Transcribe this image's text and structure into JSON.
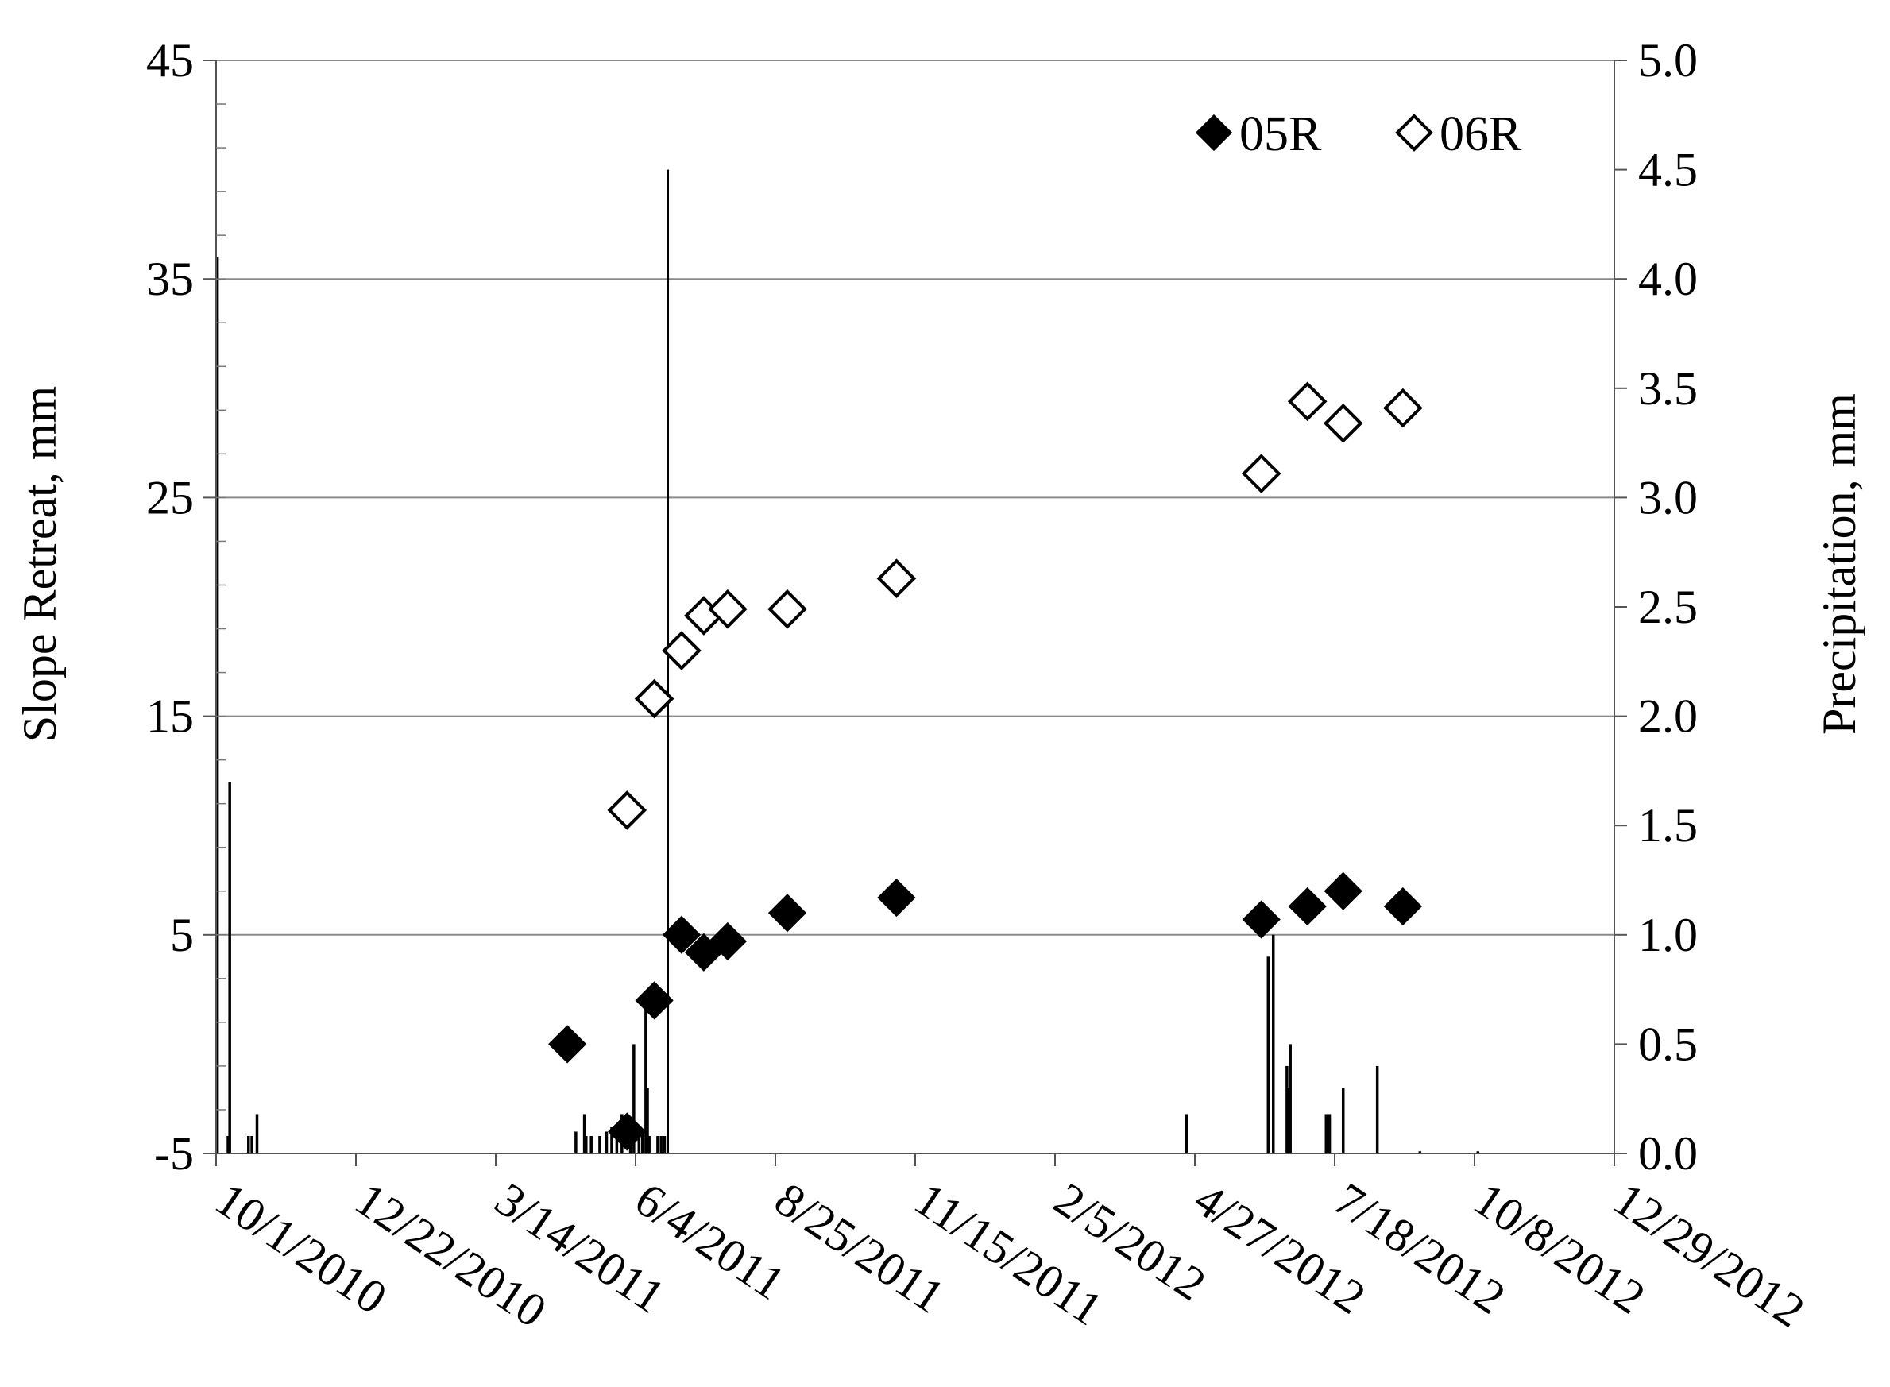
{
  "chart_data": {
    "type": "scatter",
    "title": "",
    "xlabel": "",
    "ylabel": "Slope Retreat, mm",
    "y2label": "Precipitation, mm",
    "ylim": [
      -5,
      45
    ],
    "y2lim": [
      0.0,
      5.0
    ],
    "yticks": [
      "-5",
      "5",
      "15",
      "25",
      "35",
      "45"
    ],
    "y2ticks": [
      "0.0",
      "0.5",
      "1.0",
      "1.5",
      "2.0",
      "2.5",
      "3.0",
      "3.5",
      "4.0",
      "4.5",
      "5.0"
    ],
    "xlim": [
      "2010-10-01",
      "2012-12-29"
    ],
    "xticks": [
      "10/1/2010",
      "12/22/2010",
      "3/14/2011",
      "6/4/2011",
      "8/25/2011",
      "11/15/2011",
      "2/5/2012",
      "4/27/2012",
      "7/18/2012",
      "10/8/2012",
      "12/29/2012"
    ],
    "grid": "horizontal at major y ticks",
    "legend": "top-right",
    "series": [
      {
        "name": "05R",
        "marker": "filled-diamond",
        "color": "#000000",
        "axis": "left",
        "points": [
          {
            "x": "2011-04-25",
            "y": 0.0
          },
          {
            "x": "2011-05-30",
            "y": -4.0
          },
          {
            "x": "2011-06-15",
            "y": 2.0
          },
          {
            "x": "2011-07-01",
            "y": 5.0
          },
          {
            "x": "2011-07-14",
            "y": 4.2
          },
          {
            "x": "2011-07-28",
            "y": 4.7
          },
          {
            "x": "2011-09-01",
            "y": 6.0
          },
          {
            "x": "2011-11-04",
            "y": 6.7
          },
          {
            "x": "2012-06-05",
            "y": 5.7
          },
          {
            "x": "2012-07-02",
            "y": 6.3
          },
          {
            "x": "2012-07-23",
            "y": 7.0
          },
          {
            "x": "2012-08-27",
            "y": 6.3
          }
        ]
      },
      {
        "name": "06R",
        "marker": "open-diamond",
        "color": "#000000",
        "axis": "left",
        "points": [
          {
            "x": "2011-05-30",
            "y": 10.7
          },
          {
            "x": "2011-06-15",
            "y": 15.8
          },
          {
            "x": "2011-07-01",
            "y": 18.0
          },
          {
            "x": "2011-07-14",
            "y": 19.6
          },
          {
            "x": "2011-07-28",
            "y": 19.9
          },
          {
            "x": "2011-09-01",
            "y": 19.9
          },
          {
            "x": "2011-11-04",
            "y": 21.3
          },
          {
            "x": "2012-06-05",
            "y": 26.1
          },
          {
            "x": "2012-07-02",
            "y": 29.4
          },
          {
            "x": "2012-07-23",
            "y": 28.4
          },
          {
            "x": "2012-08-27",
            "y": 29.1
          }
        ]
      },
      {
        "name": "Precipitation",
        "type": "bar",
        "color": "#000000",
        "axis": "right",
        "points": [
          {
            "x": "2010-10-02",
            "y": 4.1
          },
          {
            "x": "2010-10-08",
            "y": 0.08
          },
          {
            "x": "2010-10-09",
            "y": 1.7
          },
          {
            "x": "2010-10-20",
            "y": 0.08
          },
          {
            "x": "2010-10-22",
            "y": 0.08
          },
          {
            "x": "2010-10-25",
            "y": 0.18
          },
          {
            "x": "2011-04-30",
            "y": 0.1
          },
          {
            "x": "2011-05-05",
            "y": 0.18
          },
          {
            "x": "2011-05-06",
            "y": 0.08
          },
          {
            "x": "2011-05-09",
            "y": 0.08
          },
          {
            "x": "2011-05-14",
            "y": 0.08
          },
          {
            "x": "2011-05-18",
            "y": 0.1
          },
          {
            "x": "2011-05-21",
            "y": 0.12
          },
          {
            "x": "2011-05-24",
            "y": 0.08
          },
          {
            "x": "2011-05-27",
            "y": 0.18
          },
          {
            "x": "2011-06-01",
            "y": 0.12
          },
          {
            "x": "2011-06-03",
            "y": 0.5
          },
          {
            "x": "2011-06-06",
            "y": 0.08
          },
          {
            "x": "2011-06-08",
            "y": 0.1
          },
          {
            "x": "2011-06-10",
            "y": 0.7
          },
          {
            "x": "2011-06-11",
            "y": 0.3
          },
          {
            "x": "2011-06-12",
            "y": 0.08
          },
          {
            "x": "2011-06-17",
            "y": 0.08
          },
          {
            "x": "2011-06-19",
            "y": 0.08
          },
          {
            "x": "2011-06-21",
            "y": 0.08
          },
          {
            "x": "2011-06-23",
            "y": 4.5
          },
          {
            "x": "2012-04-22",
            "y": 0.18
          },
          {
            "x": "2012-06-09",
            "y": 0.9
          },
          {
            "x": "2012-06-12",
            "y": 1.0
          },
          {
            "x": "2012-06-20",
            "y": 0.4
          },
          {
            "x": "2012-06-21",
            "y": 0.3
          },
          {
            "x": "2012-06-22",
            "y": 0.5
          },
          {
            "x": "2012-07-13",
            "y": 0.18
          },
          {
            "x": "2012-07-15",
            "y": 0.18
          },
          {
            "x": "2012-07-23",
            "y": 0.3
          },
          {
            "x": "2012-08-12",
            "y": 0.4
          },
          {
            "x": "2012-09-06",
            "y": 0.01
          },
          {
            "x": "2012-10-10",
            "y": 0.01
          }
        ]
      }
    ]
  }
}
